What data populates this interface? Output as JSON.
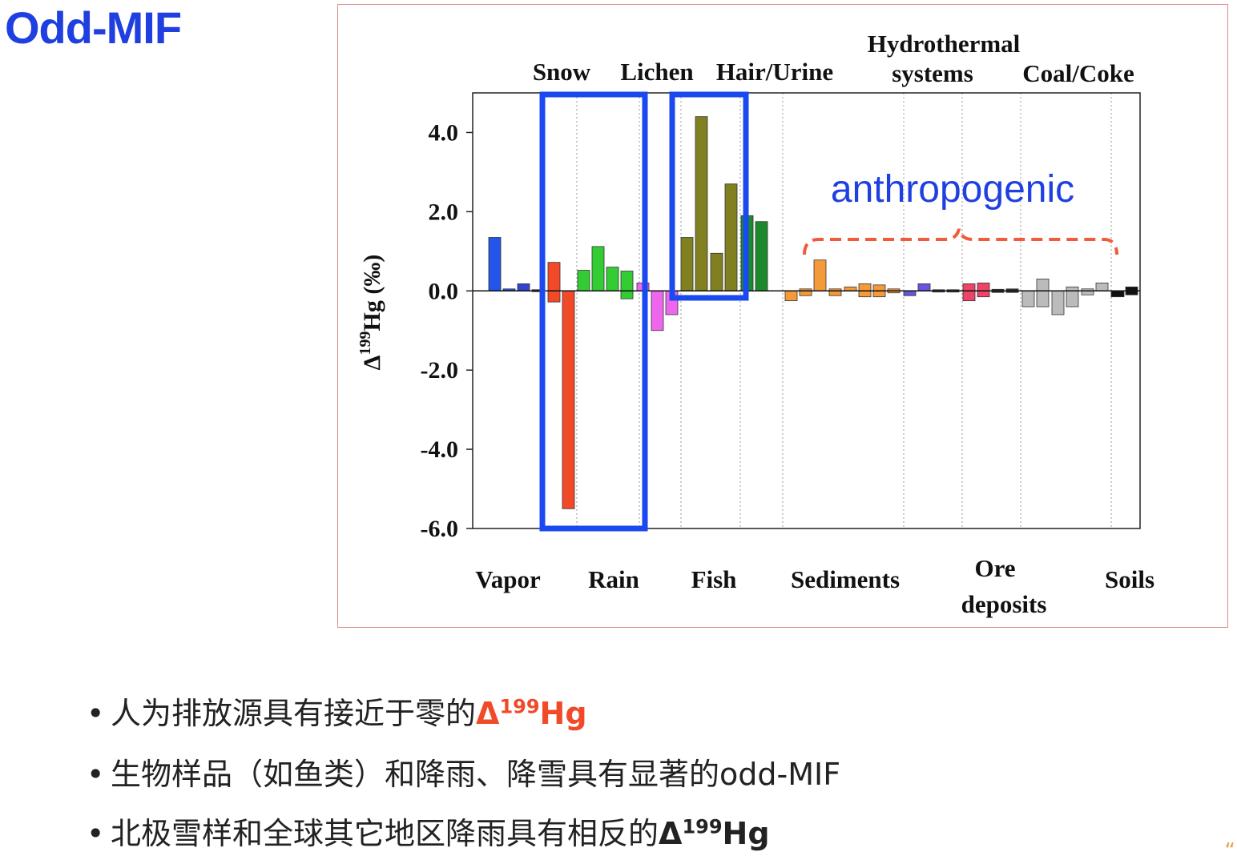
{
  "slide": {
    "title": "Odd-MIF",
    "corner_mark": "“"
  },
  "bullets": [
    {
      "pre": "人为排放源具有接近于零的",
      "delta": "Δ",
      "sup": "199",
      "post": "Hg",
      "style": "red"
    },
    {
      "pre": "生物样品（如鱼类）和降雨、降雪具有显著的odd-MIF",
      "delta": "",
      "sup": "",
      "post": "",
      "style": ""
    },
    {
      "pre": "北极雪样和全球其它地区降雨具有相反的",
      "delta": "Δ",
      "sup": "199",
      "post": "Hg",
      "style": "dark"
    }
  ],
  "chart_data": {
    "type": "bar",
    "ylabel_main": "Δ",
    "ylabel_sup": "199",
    "ylabel_rest": "Hg (‰)",
    "ylim": [
      -6.0,
      5.0
    ],
    "yticks": [
      "4.0",
      "2.0",
      "0.0",
      "-2.0",
      "-4.0",
      "-6.0"
    ],
    "ytick_values": [
      4.0,
      2.0,
      0.0,
      -2.0,
      -4.0,
      -6.0
    ],
    "top_labels": [
      "Snow",
      "Lichen",
      "Hair/Urine",
      "Hydrothermal",
      "systems",
      "Coal/Coke"
    ],
    "bottom_labels": [
      "Vapor",
      "Rain",
      "Fish",
      "Sediments",
      "Ore",
      "deposits",
      "Soils"
    ],
    "annotation": "anthropogenic",
    "highlight_color": "#1a49f0",
    "annotation_color": "#1f3fe0",
    "brace_color": "#f25a3c",
    "bars": [
      {
        "group": "Vapor",
        "color": "#2255e8",
        "top": 1.35,
        "bottom": 0.0
      },
      {
        "group": "Vapor",
        "color": "#2255e8",
        "top": 0.05,
        "bottom": 0.0
      },
      {
        "group": "Vapor",
        "color": "#3344cc",
        "top": 0.18,
        "bottom": 0.0
      },
      {
        "group": "Vapor",
        "color": "#333333",
        "top": 0.03,
        "bottom": -0.02
      },
      {
        "group": "Snow",
        "color": "#f24a28",
        "top": 0.72,
        "bottom": -0.28
      },
      {
        "group": "Snow",
        "color": "#f24a28",
        "top": 0.0,
        "bottom": -5.5
      },
      {
        "group": "Rain",
        "color": "#33cc33",
        "top": 0.52,
        "bottom": 0.0
      },
      {
        "group": "Rain",
        "color": "#33cc33",
        "top": 1.12,
        "bottom": 0.0
      },
      {
        "group": "Rain",
        "color": "#33cc33",
        "top": 0.6,
        "bottom": 0.0
      },
      {
        "group": "Rain",
        "color": "#33cc33",
        "top": 0.5,
        "bottom": -0.2
      },
      {
        "group": "Lichen",
        "color": "#ee66ee",
        "top": 0.2,
        "bottom": 0.0
      },
      {
        "group": "Lichen",
        "color": "#ee66ee",
        "top": 0.0,
        "bottom": -1.0
      },
      {
        "group": "Lichen",
        "color": "#ee66ee",
        "top": 0.0,
        "bottom": -0.6
      },
      {
        "group": "Fish",
        "color": "#808020",
        "top": 1.35,
        "bottom": 0.0
      },
      {
        "group": "Fish",
        "color": "#808020",
        "top": 4.4,
        "bottom": 0.0
      },
      {
        "group": "Fish",
        "color": "#808020",
        "top": 0.95,
        "bottom": 0.0
      },
      {
        "group": "Fish",
        "color": "#808020",
        "top": 2.7,
        "bottom": 0.0
      },
      {
        "group": "Hair/Urine",
        "color": "#1c8a2c",
        "top": 1.9,
        "bottom": 0.0
      },
      {
        "group": "Hair/Urine",
        "color": "#1c8a2c",
        "top": 1.75,
        "bottom": 0.0
      },
      {
        "group": "Sediments",
        "color": "#f59a3a",
        "top": 0.0,
        "bottom": -0.25
      },
      {
        "group": "Sediments",
        "color": "#f59a3a",
        "top": 0.05,
        "bottom": -0.12
      },
      {
        "group": "Sediments",
        "color": "#f59a3a",
        "top": 0.78,
        "bottom": 0.0
      },
      {
        "group": "Sediments",
        "color": "#f59a3a",
        "top": 0.05,
        "bottom": -0.12
      },
      {
        "group": "Sediments",
        "color": "#f59a3a",
        "top": 0.1,
        "bottom": 0.0
      },
      {
        "group": "Sediments",
        "color": "#f59a3a",
        "top": 0.18,
        "bottom": -0.15
      },
      {
        "group": "Sediments",
        "color": "#f59a3a",
        "top": 0.15,
        "bottom": -0.15
      },
      {
        "group": "Sediments",
        "color": "#f59a3a",
        "top": 0.05,
        "bottom": -0.05
      },
      {
        "group": "Hydrothermal systems",
        "color": "#6655dd",
        "top": 0.0,
        "bottom": -0.12
      },
      {
        "group": "Hydrothermal systems",
        "color": "#6655dd",
        "top": 0.18,
        "bottom": 0.0
      },
      {
        "group": "Hydrothermal systems",
        "color": "#444444",
        "top": 0.03,
        "bottom": -0.03
      },
      {
        "group": "Hydrothermal systems",
        "color": "#444444",
        "top": 0.03,
        "bottom": -0.03
      },
      {
        "group": "Ore deposits",
        "color": "#ee4466",
        "top": 0.18,
        "bottom": -0.25
      },
      {
        "group": "Ore deposits",
        "color": "#ee4466",
        "top": 0.2,
        "bottom": -0.15
      },
      {
        "group": "Ore deposits",
        "color": "#333333",
        "top": 0.04,
        "bottom": -0.04
      },
      {
        "group": "Ore deposits",
        "color": "#333333",
        "top": 0.05,
        "bottom": -0.04
      },
      {
        "group": "Coal/Coke",
        "color": "#bbbbbb",
        "top": 0.0,
        "bottom": -0.4
      },
      {
        "group": "Coal/Coke",
        "color": "#bbbbbb",
        "top": 0.3,
        "bottom": -0.4
      },
      {
        "group": "Coal/Coke",
        "color": "#bbbbbb",
        "top": 0.0,
        "bottom": -0.6
      },
      {
        "group": "Coal/Coke",
        "color": "#bbbbbb",
        "top": 0.1,
        "bottom": -0.4
      },
      {
        "group": "Coal/Coke",
        "color": "#bbbbbb",
        "top": 0.05,
        "bottom": -0.1
      },
      {
        "group": "Coal/Coke",
        "color": "#bbbbbb",
        "top": 0.2,
        "bottom": 0.0
      },
      {
        "group": "Soils",
        "color": "#111111",
        "top": 0.0,
        "bottom": -0.15
      },
      {
        "group": "Soils",
        "color": "#111111",
        "top": 0.1,
        "bottom": -0.1
      }
    ]
  }
}
